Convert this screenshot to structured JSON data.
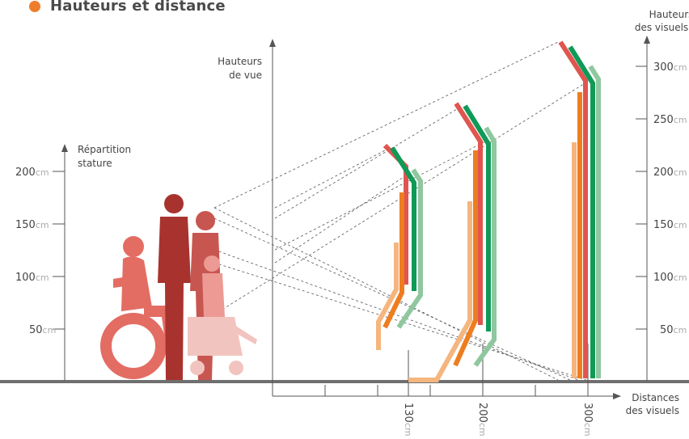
{
  "header": {
    "title": "Hauteurs et distance"
  },
  "labels": {
    "stature_1": "Répartition",
    "stature_2": "stature",
    "view_1": "Hauteurs",
    "view_2": "de vue",
    "visuals_1": "Hauteurs",
    "visuals_2": "des visuels",
    "distance_1": "Distances",
    "distance_2": "des visuels"
  },
  "unit": "cm",
  "left_ticks": [
    "200",
    "150",
    "100",
    "50"
  ],
  "right_ticks": [
    "300",
    "250",
    "200",
    "150",
    "100",
    "50"
  ],
  "distance_ticks": [
    "130",
    "200",
    "300"
  ],
  "colors": {
    "title_dot": "#ee7d2b",
    "red": "#e0554f",
    "orange": "#ee7d1f",
    "light_orange": "#f5b57e",
    "green": "#0f9a57",
    "light_green": "#8fc79f",
    "figures": "#c0332f",
    "ground": "#6f6f6f"
  }
}
